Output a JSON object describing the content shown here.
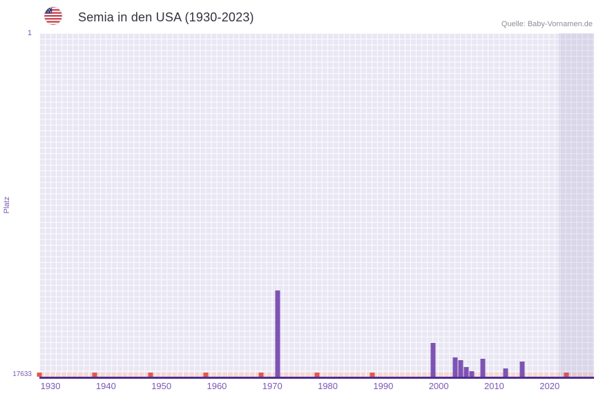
{
  "header": {
    "title": "Semia in den USA (1930-2023)",
    "source": "Quelle: Baby-Vornamen.de",
    "flag_icon": "us-flag-icon"
  },
  "chart_data": {
    "type": "bar",
    "title": "Semia in den USA (1930-2023)",
    "xlabel": "",
    "ylabel": "Platz",
    "y_axis_inverted": true,
    "y_range": [
      1,
      17633
    ],
    "y_tick_labels": [
      "1",
      "17633"
    ],
    "x_range": [
      1928,
      2028
    ],
    "x_ticks": [
      1930,
      1940,
      1950,
      1960,
      1970,
      1980,
      1990,
      2000,
      2010,
      2020
    ],
    "grid": true,
    "legend": false,
    "bars": [
      {
        "year": 1971,
        "rank": 13200
      },
      {
        "year": 1999,
        "rank": 15900
      },
      {
        "year": 2003,
        "rank": 16650
      },
      {
        "year": 2004,
        "rank": 16800
      },
      {
        "year": 2005,
        "rank": 17150
      },
      {
        "year": 2006,
        "rank": 17350
      },
      {
        "year": 2008,
        "rank": 16700
      },
      {
        "year": 2012,
        "rank": 17200
      },
      {
        "year": 2015,
        "rank": 16850
      }
    ],
    "unranked_marker_years": [
      1928,
      1938,
      1948,
      1958,
      1968,
      1978,
      1988,
      2023
    ],
    "shaded_region": {
      "from": 2021.6,
      "to": 2028
    },
    "colors": {
      "bar": "#7d53b3",
      "plot_bg": "#eae7f4",
      "grid": "#ffffff",
      "axis_line": "#4b2f96",
      "tick_label": "#7a57b4",
      "marker_dark": "#e2584e",
      "marker_light": "#f6d7d4",
      "shaded": "rgba(118,98,168,0.13)"
    }
  }
}
